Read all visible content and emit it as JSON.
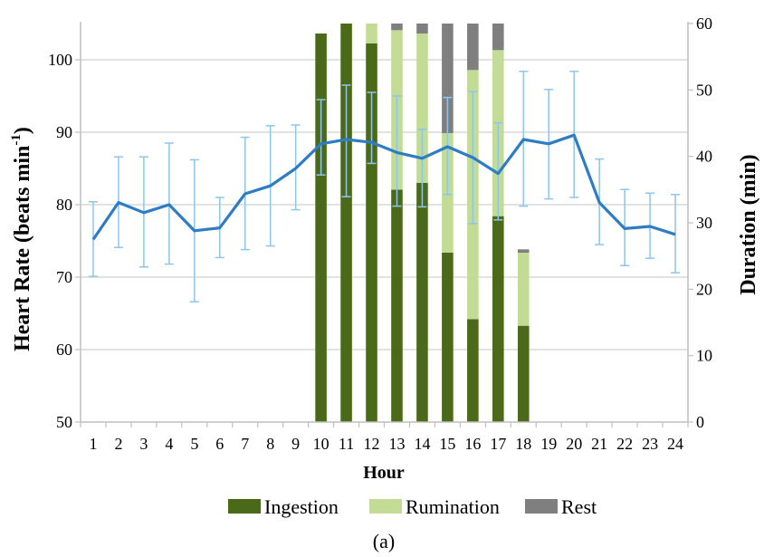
{
  "chart_data": {
    "type": "bar+line",
    "caption": "(a)",
    "xlabel": "Hour",
    "ylabel_left": "Heart Rate (beats min",
    "ylabel_left_sup": "-1",
    "ylabel_left_close": ")",
    "ylabel_right": "Duration (min)",
    "x": [
      "1",
      "2",
      "3",
      "4",
      "5",
      "6",
      "7",
      "8",
      "9",
      "10",
      "11",
      "12",
      "13",
      "14",
      "15",
      "16",
      "17",
      "18",
      "19",
      "20",
      "21",
      "22",
      "23",
      "24"
    ],
    "ylim_left": [
      50,
      105
    ],
    "yticks_left": [
      50,
      60,
      70,
      80,
      90,
      100
    ],
    "ylim_right": [
      0,
      60
    ],
    "yticks_right": [
      0,
      10,
      20,
      30,
      40,
      50,
      60
    ],
    "grid": true,
    "legend_position": "bottom",
    "line_series": {
      "name": "Heart Rate",
      "color": "#2e7cc4",
      "values": [
        75.2,
        80.3,
        78.9,
        80.0,
        76.4,
        76.8,
        81.5,
        82.6,
        85.0,
        88.4,
        89.0,
        88.6,
        87.2,
        86.4,
        88.0,
        86.5,
        84.3,
        89.0,
        88.4,
        89.6,
        80.3,
        76.7,
        77.0,
        75.9
      ],
      "error_upper": [
        80.4,
        86.6,
        86.6,
        88.5,
        86.2,
        81.0,
        89.3,
        90.9,
        91.0,
        94.5,
        96.5,
        95.5,
        95.0,
        90.4,
        94.8,
        95.6,
        91.3,
        98.4,
        95.9,
        98.4,
        86.3,
        82.1,
        81.6,
        81.4
      ],
      "error_lower": [
        70.1,
        74.1,
        71.4,
        71.8,
        66.6,
        72.7,
        73.8,
        74.3,
        79.3,
        84.1,
        81.1,
        85.7,
        79.8,
        79.7,
        81.4,
        77.4,
        77.9,
        79.8,
        80.8,
        81.0,
        74.5,
        71.6,
        72.6,
        70.6
      ]
    },
    "bar_hours": [
      "10",
      "11",
      "12",
      "13",
      "14",
      "15",
      "16",
      "17",
      "18"
    ],
    "bar_series": [
      {
        "name": "Ingestion",
        "color": "#4a6a1a",
        "values": [
          58.5,
          60.0,
          57.0,
          35.0,
          36.0,
          25.5,
          15.5,
          31.0,
          14.5
        ]
      },
      {
        "name": "Rumination",
        "color": "#c2dc96",
        "values": [
          0,
          0,
          3.0,
          24.0,
          22.5,
          18.0,
          37.5,
          25.0,
          11.0
        ]
      },
      {
        "name": "Rest",
        "color": "#7f7f7f",
        "values": [
          0,
          0,
          0,
          1.0,
          1.5,
          16.5,
          7.0,
          4.0,
          0.5
        ]
      }
    ]
  }
}
